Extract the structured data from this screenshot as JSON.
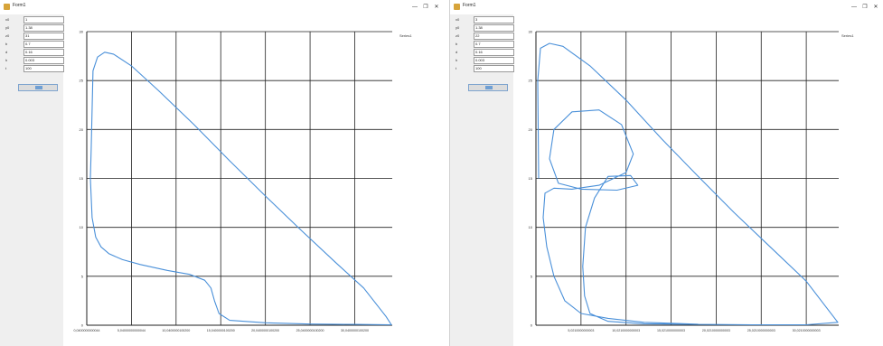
{
  "windows": [
    {
      "title": "Form1",
      "controls": {
        "minimize": "—",
        "maximize": "❐",
        "close": "✕"
      },
      "params": [
        {
          "label": "x0",
          "value": "1"
        },
        {
          "label": "y0",
          "value": "1.38"
        },
        {
          "label": "z0",
          "value": "31"
        },
        {
          "label": "b",
          "value": "0.7"
        },
        {
          "label": "d",
          "value": "0.16"
        },
        {
          "label": "h",
          "value": "0.003"
        },
        {
          "label": "t",
          "value": "100"
        }
      ],
      "legend": "Series1",
      "chart_data": {
        "type": "line",
        "ylim": [
          0,
          30
        ],
        "yticks": [
          "0",
          "5",
          "10",
          "15",
          "20",
          "25",
          "30"
        ],
        "xticks": [
          "0,0400000000044",
          "5,04000000000044",
          "10,0400000100200",
          "15,0400000100200",
          "20,0400000100200",
          "25,0400000100200",
          "30,0400000100200"
        ],
        "series": [
          {
            "color": "#4a90d9",
            "points": [
              [
                0.5,
                18
              ],
              [
                0.7,
                26
              ],
              [
                1.2,
                27.4
              ],
              [
                2.0,
                27.9
              ],
              [
                3.0,
                27.7
              ],
              [
                5.0,
                26.5
              ],
              [
                8.0,
                24.0
              ],
              [
                12.0,
                20.5
              ],
              [
                16.0,
                16.8
              ],
              [
                20.0,
                13.2
              ],
              [
                24.0,
                9.7
              ],
              [
                28.0,
                6.3
              ],
              [
                31.0,
                3.8
              ],
              [
                33.5,
                0.9
              ],
              [
                34.1,
                0.05
              ],
              [
                30.0,
                0.08
              ],
              [
                25.0,
                0.12
              ],
              [
                20.0,
                0.25
              ],
              [
                16.0,
                0.5
              ],
              [
                14.8,
                1.2
              ],
              [
                14.3,
                2.5
              ],
              [
                13.9,
                3.8
              ],
              [
                13.2,
                4.6
              ],
              [
                11.5,
                5.2
              ],
              [
                9.0,
                5.6
              ],
              [
                6.0,
                6.2
              ],
              [
                4.0,
                6.7
              ],
              [
                2.5,
                7.3
              ],
              [
                1.6,
                8.0
              ],
              [
                1.0,
                9.0
              ],
              [
                0.6,
                11.0
              ],
              [
                0.4,
                15.0
              ],
              [
                0.5,
                18
              ]
            ]
          }
        ]
      }
    },
    {
      "title": "Form1",
      "controls": {
        "minimize": "—",
        "maximize": "❐",
        "close": "✕"
      },
      "params": [
        {
          "label": "x0",
          "value": "3"
        },
        {
          "label": "y0",
          "value": "1.38"
        },
        {
          "label": "z0",
          "value": "22"
        },
        {
          "label": "b",
          "value": "0.7"
        },
        {
          "label": "d",
          "value": "0.16"
        },
        {
          "label": "h",
          "value": "0.003"
        },
        {
          "label": "t",
          "value": "100"
        }
      ],
      "legend": "Series1",
      "chart_data": {
        "type": "line",
        "ylim": [
          0,
          30
        ],
        "yticks": [
          "0",
          "5",
          "10",
          "15",
          "20",
          "25",
          "30"
        ],
        "xticks": [
          "5,0210000000003",
          "10,0210000000003",
          "15,0210000000003",
          "20,0210000000003",
          "25,0210000000003",
          "30,0210000000003"
        ],
        "series": [
          {
            "color": "#4a90d9",
            "points": [
              [
                0.3,
                15.0
              ],
              [
                0.2,
                25.0
              ],
              [
                0.5,
                28.3
              ],
              [
                1.5,
                28.8
              ],
              [
                3.0,
                28.5
              ],
              [
                6.0,
                26.5
              ],
              [
                10.0,
                23.0
              ],
              [
                14.0,
                19.0
              ],
              [
                18.0,
                15.2
              ],
              [
                22.0,
                11.5
              ],
              [
                26.0,
                8.0
              ],
              [
                30.0,
                4.5
              ],
              [
                33.5,
                0.3
              ],
              [
                30.0,
                0.05
              ],
              [
                24.0,
                0.05
              ],
              [
                18.0,
                0.08
              ],
              [
                12.0,
                0.15
              ],
              [
                8.0,
                0.4
              ],
              [
                6.0,
                1.2
              ],
              [
                5.4,
                3.0
              ],
              [
                5.2,
                6.0
              ],
              [
                5.5,
                10.0
              ],
              [
                6.5,
                13.0
              ],
              [
                8.0,
                15.2
              ],
              [
                10.5,
                15.3
              ],
              [
                11.3,
                14.3
              ],
              [
                9.0,
                13.8
              ],
              [
                5.0,
                13.9
              ],
              [
                2.5,
                14.5
              ],
              [
                1.5,
                17.0
              ],
              [
                2.0,
                20.0
              ],
              [
                4.0,
                21.8
              ],
              [
                7.0,
                22.0
              ],
              [
                9.5,
                20.5
              ],
              [
                10.8,
                17.5
              ],
              [
                10.0,
                15.6
              ],
              [
                7.0,
                14.3
              ],
              [
                4.0,
                13.9
              ],
              [
                2.0,
                14.0
              ],
              [
                1.0,
                13.5
              ],
              [
                0.8,
                11.0
              ],
              [
                1.2,
                8.0
              ],
              [
                2.0,
                5.0
              ],
              [
                3.2,
                2.5
              ],
              [
                5.0,
                1.2
              ],
              [
                8.0,
                0.7
              ],
              [
                12.0,
                0.3
              ],
              [
                18.0,
                0.1
              ]
            ]
          }
        ]
      }
    }
  ]
}
